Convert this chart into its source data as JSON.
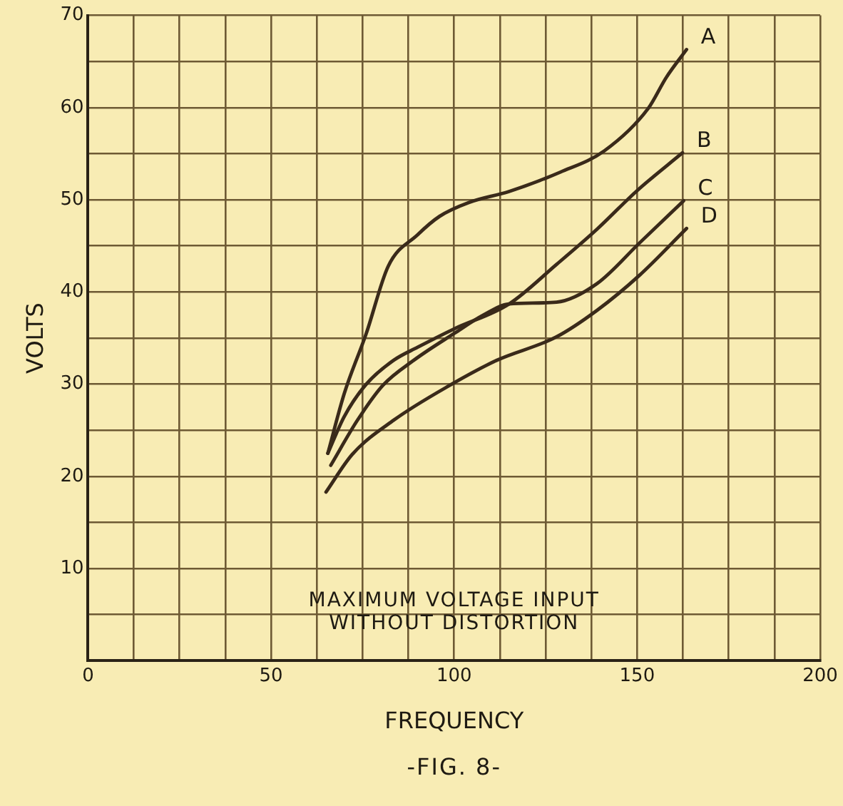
{
  "chart_data": {
    "type": "line",
    "xlabel": "FREQUENCY",
    "ylabel": "VOLTS",
    "annotations": [
      "MAXIMUM VOLTAGE INPUT WITHOUT DISTORTION",
      "-FIG. 8-"
    ],
    "xlim": [
      0,
      200
    ],
    "ylim": [
      0,
      70
    ],
    "xticks": [
      0,
      {
        "value": 12.5,
        "label": null
      },
      {
        "value": 25,
        "label": null
      },
      {
        "value": 37.5,
        "label": null
      },
      50,
      {
        "value": 62.5,
        "label": null
      },
      {
        "value": 75,
        "label": null
      },
      {
        "value": 87.5,
        "label": null
      },
      100,
      {
        "value": 112.5,
        "label": null
      },
      {
        "value": 125,
        "label": null
      },
      {
        "value": 137.5,
        "label": null
      },
      150,
      {
        "value": 162.5,
        "label": null
      },
      {
        "value": 175,
        "label": null
      },
      {
        "value": 187.5,
        "label": null
      },
      200
    ],
    "yticks": [
      {
        "value": 0,
        "label": null
      },
      {
        "value": 5,
        "label": null
      },
      10,
      {
        "value": 15,
        "label": null
      },
      20,
      {
        "value": 25,
        "label": null
      },
      30,
      {
        "value": 35,
        "label": null
      },
      40,
      {
        "value": 45,
        "label": null
      },
      50,
      {
        "value": 55,
        "label": null
      },
      60,
      {
        "value": 65,
        "label": null
      },
      70
    ],
    "grid": true,
    "marker": "none",
    "line_style": "solid",
    "legend": false,
    "series": [
      {
        "name": "A",
        "color": "#3a2a1a",
        "x": [
          65.5,
          70,
          76,
          82,
          90,
          96,
          104,
          115,
          129,
          141,
          153,
          158,
          163.5
        ],
        "values": [
          22.5,
          29,
          35.5,
          42.8,
          46.2,
          48.2,
          49.7,
          50.9,
          53,
          55.3,
          59.9,
          63.3,
          66.3
        ]
      },
      {
        "name": "B",
        "color": "#3a2a1a",
        "x": [
          65.5,
          70,
          76,
          83.5,
          90,
          100,
          115,
          128,
          139,
          150,
          162.4
        ],
        "values": [
          22.5,
          26.5,
          30,
          32.6,
          34,
          36,
          38.7,
          43,
          46.8,
          51,
          55.1
        ]
      },
      {
        "name": "C",
        "color": "#3a2a1a",
        "x": [
          66.3,
          73.6,
          80.6,
          89,
          100,
          108,
          115,
          128,
          139,
          150.6,
          162.7
        ],
        "values": [
          21.2,
          26.1,
          29.9,
          32.6,
          35.5,
          37.5,
          38.7,
          38.9,
          40.9,
          45.3,
          49.9
        ]
      },
      {
        "name": "D",
        "color": "#3a2a1a",
        "x": [
          65,
          72.2,
          83.5,
          98.9,
          111.7,
          127.8,
          139,
          150.6,
          163.5
        ],
        "values": [
          18.3,
          22.4,
          26.1,
          29.9,
          32.6,
          35.1,
          38,
          41.8,
          46.9
        ]
      }
    ]
  }
}
